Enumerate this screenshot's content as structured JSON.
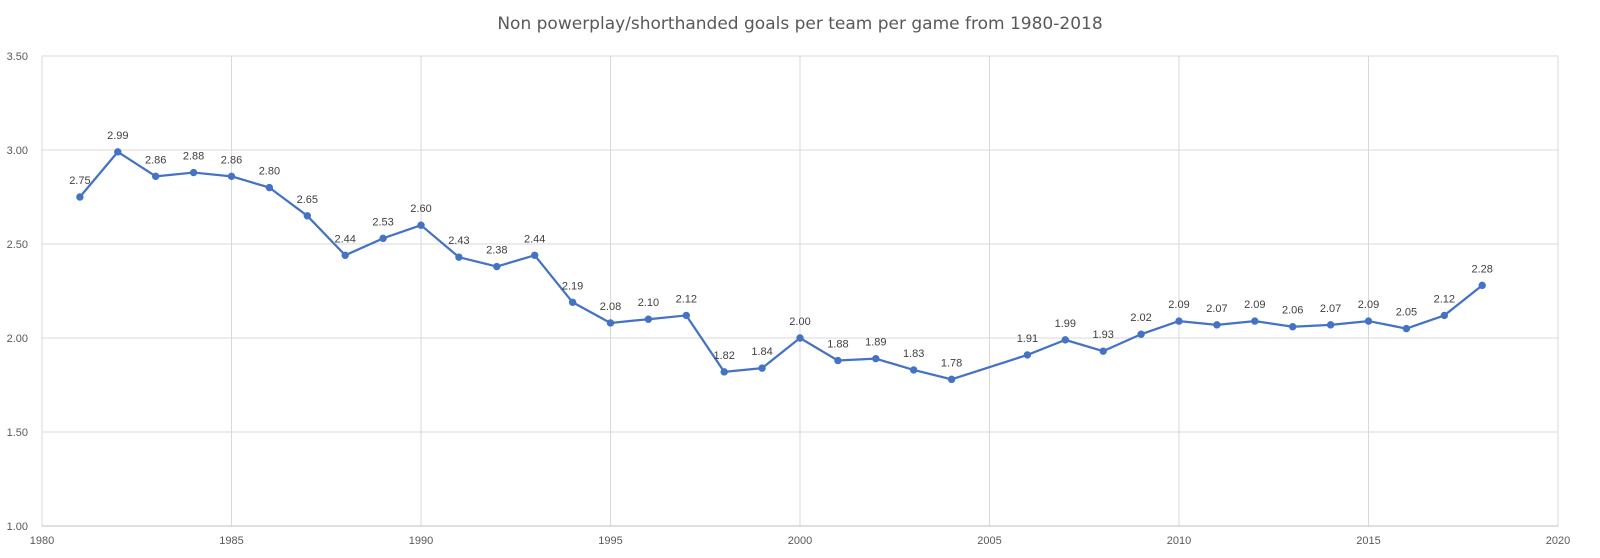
{
  "chart_data": {
    "type": "line",
    "title": "Non powerplay/shorthanded goals per team per game from 1980-2018",
    "xlabel": "",
    "ylabel": "",
    "xlim": [
      1980,
      2020
    ],
    "ylim": [
      1.0,
      3.5
    ],
    "x_ticks": [
      "1980",
      "1985",
      "1990",
      "1995",
      "2000",
      "2005",
      "2010",
      "2015",
      "2020"
    ],
    "y_ticks": [
      "1.00",
      "1.50",
      "2.00",
      "2.50",
      "3.00",
      "3.50"
    ],
    "grid": true,
    "legend": "none",
    "line_color": "#4472C4",
    "series": [
      {
        "points": [
          {
            "x": 1981,
            "y": 2.75,
            "label": "2.75"
          },
          {
            "x": 1982,
            "y": 2.99,
            "label": "2.99"
          },
          {
            "x": 1983,
            "y": 2.86,
            "label": "2.86"
          },
          {
            "x": 1984,
            "y": 2.88,
            "label": "2.88"
          },
          {
            "x": 1985,
            "y": 2.86,
            "label": "2.86"
          },
          {
            "x": 1986,
            "y": 2.8,
            "label": "2.80"
          },
          {
            "x": 1987,
            "y": 2.65,
            "label": "2.65"
          },
          {
            "x": 1988,
            "y": 2.44,
            "label": "2.44"
          },
          {
            "x": 1989,
            "y": 2.53,
            "label": "2.53"
          },
          {
            "x": 1990,
            "y": 2.6,
            "label": "2.60"
          },
          {
            "x": 1991,
            "y": 2.43,
            "label": "2.43"
          },
          {
            "x": 1992,
            "y": 2.38,
            "label": "2.38"
          },
          {
            "x": 1993,
            "y": 2.44,
            "label": "2.44"
          },
          {
            "x": 1994,
            "y": 2.19,
            "label": "2.19"
          },
          {
            "x": 1995,
            "y": 2.08,
            "label": "2.08"
          },
          {
            "x": 1996,
            "y": 2.1,
            "label": "2.10"
          },
          {
            "x": 1997,
            "y": 2.12,
            "label": "2.12"
          },
          {
            "x": 1998,
            "y": 1.82,
            "label": "1.82"
          },
          {
            "x": 1999,
            "y": 1.84,
            "label": "1.84"
          },
          {
            "x": 2000,
            "y": 2.0,
            "label": "2.00"
          },
          {
            "x": 2001,
            "y": 1.88,
            "label": "1.88"
          },
          {
            "x": 2002,
            "y": 1.89,
            "label": "1.89"
          },
          {
            "x": 2003,
            "y": 1.83,
            "label": "1.83"
          },
          {
            "x": 2004,
            "y": 1.78,
            "label": "1.78"
          },
          {
            "x": 2006,
            "y": 1.91,
            "label": "1.91"
          },
          {
            "x": 2007,
            "y": 1.99,
            "label": "1.99"
          },
          {
            "x": 2008,
            "y": 1.93,
            "label": "1.93"
          },
          {
            "x": 2009,
            "y": 2.02,
            "label": "2.02"
          },
          {
            "x": 2010,
            "y": 2.09,
            "label": "2.09"
          },
          {
            "x": 2011,
            "y": 2.07,
            "label": "2.07"
          },
          {
            "x": 2012,
            "y": 2.09,
            "label": "2.09"
          },
          {
            "x": 2013,
            "y": 2.06,
            "label": "2.06"
          },
          {
            "x": 2014,
            "y": 2.07,
            "label": "2.07"
          },
          {
            "x": 2015,
            "y": 2.09,
            "label": "2.09"
          },
          {
            "x": 2016,
            "y": 2.05,
            "label": "2.05"
          },
          {
            "x": 2017,
            "y": 2.12,
            "label": "2.12"
          },
          {
            "x": 2018,
            "y": 2.28,
            "label": "2.28"
          }
        ]
      }
    ]
  }
}
